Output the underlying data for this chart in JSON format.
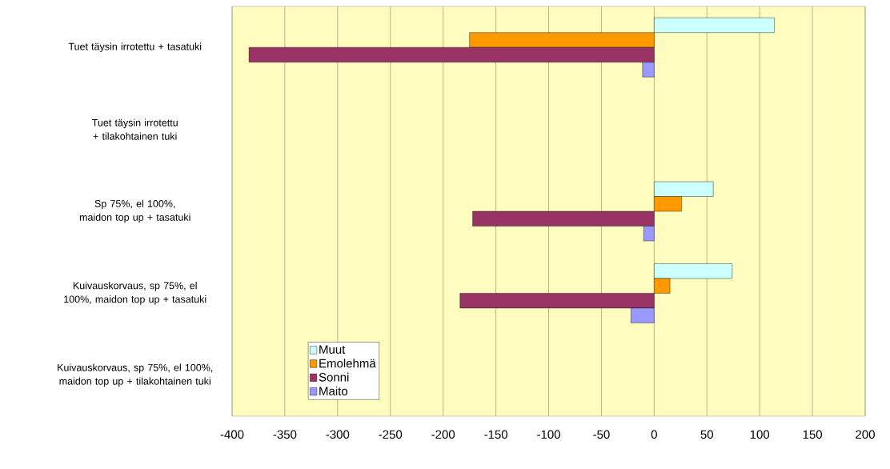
{
  "chart_data": {
    "type": "bar",
    "orientation": "horizontal",
    "categories": [
      "Tuet täysin irrotettu + tasatuki",
      "Tuet täysin irrotettu + tilakohtainen tuki",
      "Sp 75%, el 100%, maidon top up + tasatuki",
      "Kuivauskorvaus, sp 75%, el 100%, maidon top up + tasatuki",
      "Kuivauskorvaus, sp 75%, el 100%, maidon top up + tilakohtainen tuki"
    ],
    "series": [
      {
        "name": "Muut",
        "color": "#ccffff",
        "values": [
          114,
          null,
          56,
          74,
          null
        ]
      },
      {
        "name": "Emolehmä",
        "color": "#ff9900",
        "values": [
          -175,
          null,
          26,
          15,
          null
        ]
      },
      {
        "name": "Sonni",
        "color": "#993366",
        "values": [
          -384,
          null,
          -172,
          -184,
          null
        ]
      },
      {
        "name": "Maito",
        "color": "#9999ff",
        "values": [
          -11,
          null,
          -10,
          -22,
          null
        ]
      }
    ],
    "xlim": [
      -400,
      200
    ],
    "xticks": [
      -400,
      -350,
      -300,
      -250,
      -200,
      -150,
      -100,
      -50,
      0,
      50,
      100,
      150,
      200
    ],
    "grid": "x",
    "legend": "bottom left"
  }
}
